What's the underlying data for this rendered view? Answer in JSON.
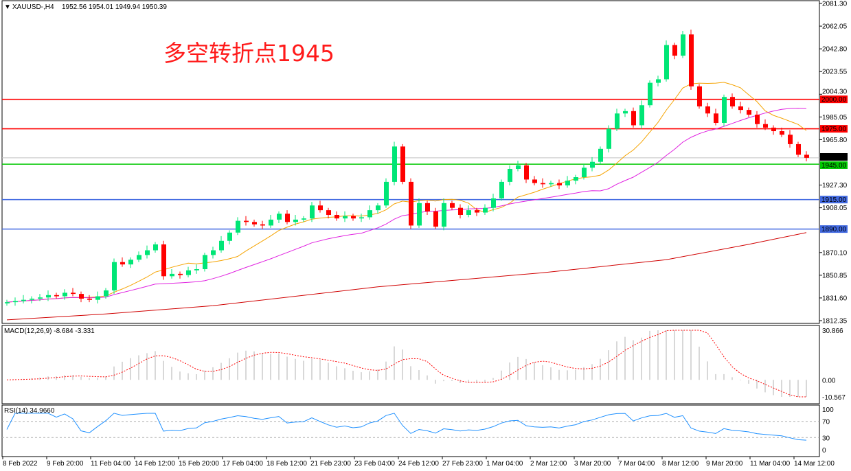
{
  "header": {
    "symbol": "XAUUSD-,H4",
    "ohlc": "1952.56 1954.01 1949.94 1950.39"
  },
  "annotation": "多空转折点1945",
  "colors": {
    "bull": "#00e676",
    "bear": "#ff0000",
    "ma_fast": "#f5a300",
    "ma_mid": "#e020e0",
    "ma_slow": "#d00000",
    "macd_hist": "#b0b0b0",
    "macd_signal": "#ff0000",
    "rsi": "#1e90ff"
  },
  "chart_data": [
    {
      "type": "candlestick",
      "title": "XAUUSD-,H4",
      "ylim": [
        1812.35,
        2081.3
      ],
      "y_ticks": [
        "2081.30",
        "2062.05",
        "2042.80",
        "2023.55",
        "2004.30",
        "1985.05",
        "1965.80",
        "1950.39",
        "1927.30",
        "1908.05",
        "1870.10",
        "1850.85",
        "1831.60",
        "1812.35"
      ],
      "x_ticks": [
        "8 Feb 2022",
        "9 Feb 20:00",
        "11 Feb 04:00",
        "14 Feb 12:00",
        "15 Feb 20:00",
        "17 Feb 04:00",
        "18 Feb 12:00",
        "21 Feb 23:00",
        "23 Feb 04:00",
        "24 Feb 12:00",
        "27 Feb 23:00",
        "1 Mar 04:00",
        "2 Mar 12:00",
        "3 Mar 20:00",
        "7 Mar 04:00",
        "8 Mar 12:00",
        "9 Mar 20:00",
        "11 Mar 04:00",
        "14 Mar 12:00"
      ],
      "first_open": 1827,
      "closes": [
        1828,
        1829,
        1830,
        1831,
        1832,
        1834,
        1833,
        1836,
        1835,
        1831,
        1830,
        1833,
        1838,
        1862,
        1860,
        1864,
        1868,
        1872,
        1877,
        1850,
        1852,
        1851,
        1855,
        1856,
        1868,
        1872,
        1880,
        1887,
        1897,
        1896,
        1894,
        1893,
        1898,
        1903,
        1896,
        1898,
        1899,
        1910,
        1906,
        1902,
        1899,
        1901,
        1899,
        1900,
        1906,
        1910,
        1930,
        1960,
        1930,
        1893,
        1912,
        1905,
        1892,
        1912,
        1908,
        1902,
        1906,
        1904,
        1908,
        1916,
        1930,
        1941,
        1944,
        1932,
        1929,
        1928,
        1929,
        1927,
        1931,
        1934,
        1942,
        1947,
        1958,
        1975,
        1988,
        1990,
        1978,
        1995,
        2014,
        2017,
        2046,
        2037,
        2055,
        2011,
        1994,
        1988,
        1980,
        2002,
        1994,
        1991,
        1987,
        1979,
        1976,
        1973,
        1970,
        1962,
        1953,
        1950.39
      ],
      "ma_slow": [
        [
          0,
          1813
        ],
        [
          12,
          1818
        ],
        [
          25,
          1825
        ],
        [
          45,
          1841
        ],
        [
          65,
          1853
        ],
        [
          80,
          1864
        ],
        [
          90,
          1877
        ],
        [
          97,
          1887
        ]
      ],
      "horizontal_levels": [
        {
          "value": 2000.0,
          "label": "2000.00",
          "color": "#ff0000"
        },
        {
          "value": 1975.0,
          "label": "1975.00",
          "color": "#ff0000"
        },
        {
          "value": 1945.0,
          "label": "1945.00",
          "color": "#00c800"
        },
        {
          "value": 1915.0,
          "label": "1915.00",
          "color": "#4169e1"
        },
        {
          "value": 1890.0,
          "label": "1890.00",
          "color": "#4169e1"
        }
      ],
      "current_price": {
        "value": 1950.39,
        "label": "1950.39"
      }
    },
    {
      "type": "macd",
      "title": "MACD(12,26,9) -8.684 -3.331",
      "ylim": [
        -10.567,
        30.866
      ],
      "y_ticks": [
        "30.866",
        "0.00",
        "-10.567"
      ]
    },
    {
      "type": "rsi",
      "title": "RSI(14) 34.9660",
      "ylim": [
        0,
        100
      ],
      "levels": [
        70,
        30
      ],
      "y_ticks": [
        "100",
        "70",
        "30",
        "0"
      ]
    }
  ]
}
